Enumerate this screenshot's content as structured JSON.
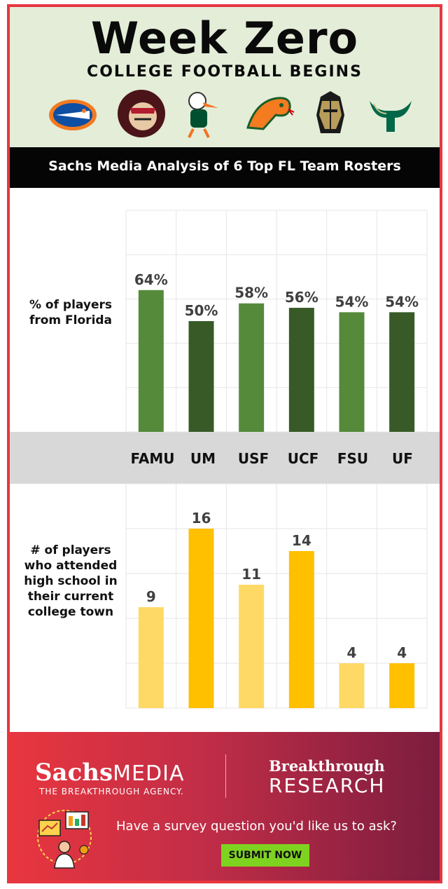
{
  "header": {
    "title": "Week Zero",
    "subtitle": "COLLEGE FOOTBALL BEGINS",
    "logos": [
      "gator-logo-icon",
      "seminole-logo-icon",
      "ibis-logo-icon",
      "rattler-logo-icon",
      "knight-logo-icon",
      "bull-horns-logo-icon"
    ]
  },
  "banner": {
    "text": "Sachs Media Analysis of 6 Top FL Team Rosters"
  },
  "colors": {
    "green_light": "#548a3a",
    "green_dark": "#375a27",
    "gold_light": "#ffd966",
    "gold_dark": "#ffc000",
    "accent_red": "#e7363f",
    "submit_green": "#7ed321"
  },
  "chart_data": [
    {
      "type": "bar",
      "title": "% of players from Florida",
      "categories": [
        "FAMU",
        "UM",
        "USF",
        "UCF",
        "FSU",
        "UF"
      ],
      "values": [
        64,
        50,
        58,
        56,
        54,
        54
      ],
      "value_labels": [
        "64%",
        "50%",
        "58%",
        "56%",
        "54%",
        "54%"
      ],
      "unit": "%",
      "ylim": [
        0,
        100
      ],
      "grid": true,
      "legend": "none"
    },
    {
      "type": "bar",
      "title": "# of players who attended high school in their current college town",
      "categories": [
        "FAMU",
        "UM",
        "USF",
        "UCF",
        "FSU",
        "UF"
      ],
      "values": [
        9,
        16,
        11,
        14,
        4,
        4
      ],
      "value_labels": [
        "9",
        "16",
        "11",
        "14",
        "4",
        "4"
      ],
      "ylim": [
        0,
        20
      ],
      "grid": true,
      "legend": "none"
    }
  ],
  "footer": {
    "brand_main": "Sachs",
    "brand_media": "MEDIA",
    "tagline": "THE BREAKTHROUGH AGENCY.",
    "partner_line1": "Breakthrough",
    "partner_line2": "RESEARCH",
    "survey_question": "Have a survey question you'd like us to ask?",
    "submit_label": "SUBMIT NOW",
    "survey_icon": "survey-presentation-icon"
  }
}
